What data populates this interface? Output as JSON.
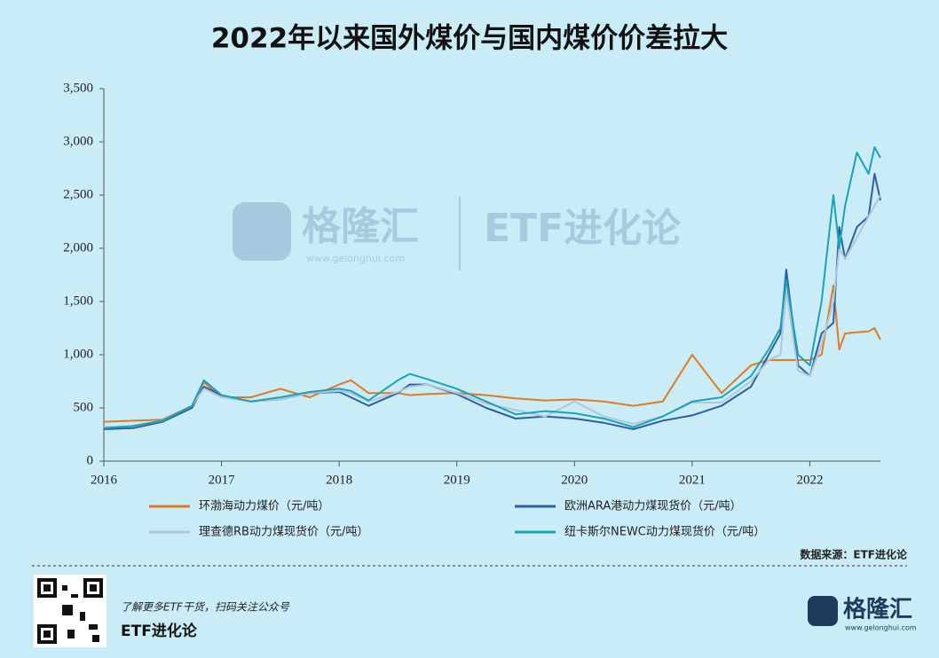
{
  "chart_data": {
    "type": "line",
    "title": "2022年以来国外煤价与国内煤价价差拉大",
    "x": [
      2016.0,
      2016.25,
      2016.5,
      2016.75,
      2016.85,
      2017.0,
      2017.25,
      2017.5,
      2017.75,
      2018.0,
      2018.1,
      2018.25,
      2018.5,
      2018.6,
      2018.75,
      2019.0,
      2019.25,
      2019.5,
      2019.75,
      2020.0,
      2020.25,
      2020.5,
      2020.75,
      2021.0,
      2021.25,
      2021.5,
      2021.65,
      2021.75,
      2021.8,
      2021.9,
      2022.0,
      2022.1,
      2022.2,
      2022.25,
      2022.3,
      2022.4,
      2022.5,
      2022.55,
      2022.6
    ],
    "series": [
      {
        "name": "环渤海动力煤价（元/吨）",
        "color": "#e07b22",
        "values": [
          370,
          380,
          390,
          520,
          740,
          600,
          600,
          680,
          600,
          720,
          760,
          640,
          640,
          620,
          630,
          640,
          620,
          590,
          570,
          580,
          560,
          520,
          560,
          1000,
          640,
          900,
          950,
          950,
          950,
          950,
          950,
          1000,
          1650,
          1050,
          1200,
          1210,
          1220,
          1250,
          1140
        ]
      },
      {
        "name": "欧洲ARA港动力煤现货价（元/吨）",
        "color": "#2d5fa6",
        "values": [
          300,
          310,
          370,
          500,
          700,
          620,
          560,
          580,
          640,
          650,
          600,
          520,
          640,
          720,
          720,
          630,
          500,
          400,
          420,
          400,
          360,
          300,
          380,
          430,
          520,
          700,
          1000,
          1200,
          1800,
          900,
          800,
          1200,
          1300,
          2200,
          1900,
          2200,
          2300,
          2700,
          2450
        ]
      },
      {
        "name": "理查德RB动力煤现货价（元/吨）",
        "color": "#b3c6d8",
        "values": [
          320,
          330,
          380,
          520,
          680,
          600,
          560,
          580,
          640,
          660,
          640,
          560,
          650,
          700,
          720,
          640,
          540,
          480,
          420,
          560,
          420,
          350,
          420,
          550,
          550,
          750,
          950,
          1000,
          1600,
          850,
          800,
          1100,
          1500,
          2000,
          1900,
          2100,
          2300,
          2400,
          2500
        ]
      },
      {
        "name": "纽卡斯尔NEWC动力煤现货价（元/吨）",
        "color": "#1aa3b8",
        "values": [
          310,
          330,
          380,
          520,
          760,
          620,
          560,
          600,
          650,
          680,
          660,
          570,
          760,
          820,
          770,
          680,
          560,
          440,
          470,
          450,
          400,
          320,
          420,
          560,
          600,
          800,
          1050,
          1250,
          1700,
          1000,
          900,
          1500,
          2500,
          2000,
          2400,
          2900,
          2700,
          2950,
          2850
        ]
      }
    ],
    "xlim": [
      2016,
      2022.6
    ],
    "xticks": [
      2016,
      2017,
      2018,
      2019,
      2020,
      2021,
      2022
    ],
    "ylim": [
      0,
      3500
    ],
    "yticks": [
      0,
      500,
      {
        "value": 1000,
        "label": "1,000"
      },
      {
        "value": 1500,
        "label": "1,500"
      },
      {
        "value": 2000,
        "label": "2,000"
      },
      {
        "value": 2500,
        "label": "2,500"
      },
      {
        "value": 3000,
        "label": "3,000"
      },
      {
        "value": 3500,
        "label": "3,500"
      }
    ],
    "grid": false
  },
  "source": "数据来源：ETF进化论",
  "watermark": {
    "brand": "格隆汇",
    "site": "www.gelonghui.com",
    "channel": "ETF进化论"
  },
  "footer": {
    "prompt": "了解更多ETF干货，扫码关注公众号",
    "channel": "ETF进化论",
    "brand": "格隆汇",
    "site": "www.gelonghui.com"
  }
}
